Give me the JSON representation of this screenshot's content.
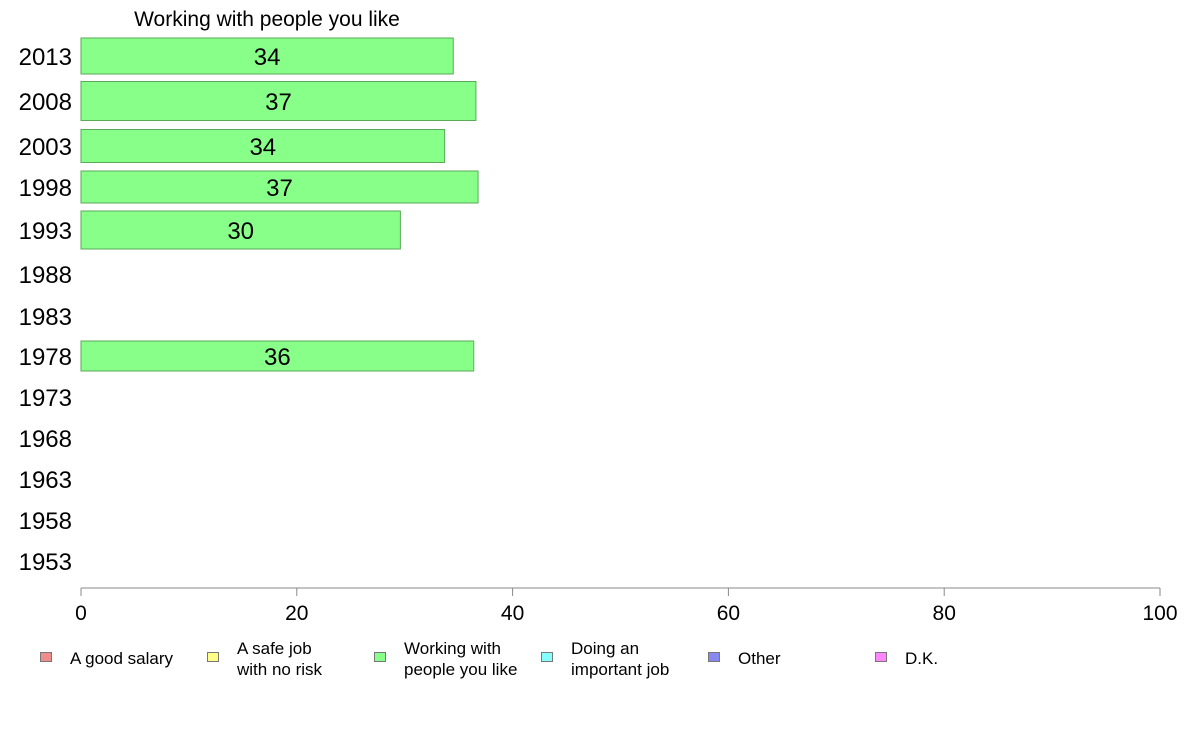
{
  "chart_data": {
    "type": "bar",
    "orientation": "horizontal",
    "title": "Working with people you like",
    "categories": [
      "2013",
      "2008",
      "2003",
      "1998",
      "1993",
      "1988",
      "1983",
      "1978",
      "1973",
      "1968",
      "1963",
      "1958",
      "1953"
    ],
    "series": [
      {
        "name": "Working with people you like",
        "color": "#88ff88",
        "values": [
          34.5,
          36.6,
          33.7,
          36.8,
          29.6,
          null,
          null,
          36.4,
          null,
          null,
          null,
          null,
          null
        ],
        "labels": [
          "34",
          "37",
          "34",
          "37",
          "30",
          "",
          "",
          "36",
          "",
          "",
          "",
          "",
          ""
        ]
      }
    ],
    "xlim": [
      0,
      100
    ],
    "xticks": [
      "0",
      "20",
      "40",
      "60",
      "80",
      "100"
    ],
    "grid": false,
    "legend_position": "bottom"
  },
  "legend": [
    {
      "label": "A good salary",
      "color": "#f08c8c"
    },
    {
      "label": "A safe job\nwith no risk",
      "color": "#ffff88"
    },
    {
      "label": "Working with\npeople you like",
      "color": "#88ff88"
    },
    {
      "label": "Doing an\nimportant job",
      "color": "#88ffff"
    },
    {
      "label": "Other",
      "color": "#8888f0"
    },
    {
      "label": "D.K.",
      "color": "#ff88ff"
    }
  ]
}
